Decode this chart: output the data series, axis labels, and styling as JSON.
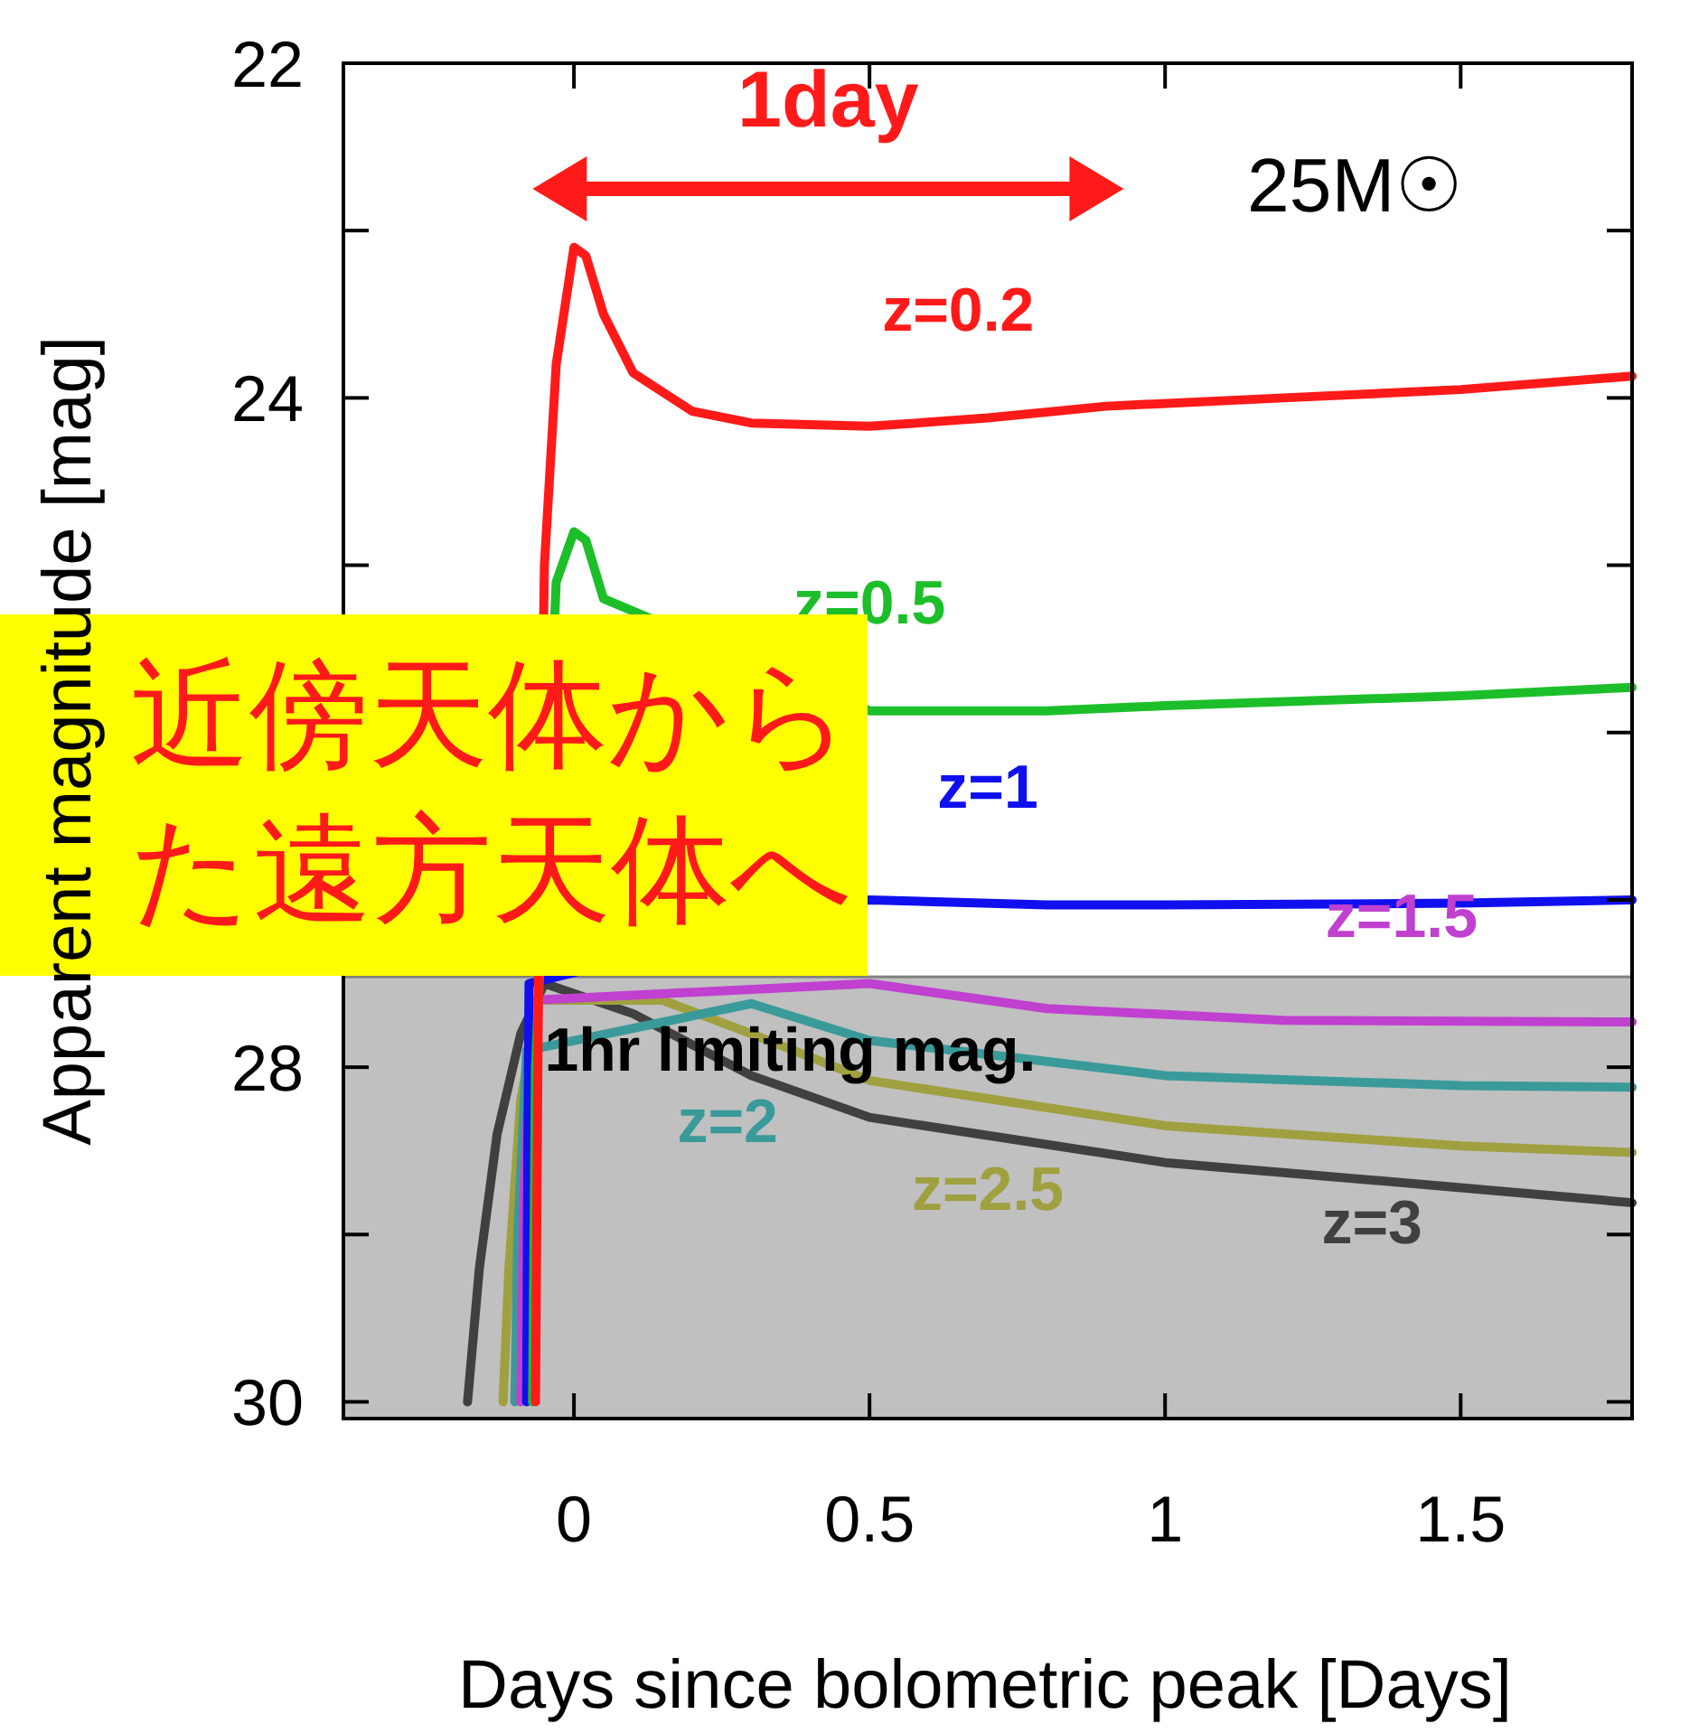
{
  "chart_data": {
    "type": "line",
    "xlabel": "Days since bolometric peak [Days]",
    "ylabel": "Apparent magnitude [mag]",
    "xlim": [
      -0.39,
      1.79
    ],
    "ylim": [
      30.1,
      22
    ],
    "xticks": [
      0,
      0.5,
      1,
      1.5
    ],
    "yticks": [
      22,
      {
        "value": 23,
        "label": null
      },
      24,
      {
        "value": 25,
        "label": null
      },
      {
        "value": 26,
        "label": null
      },
      {
        "value": 27,
        "label": null
      },
      28,
      {
        "value": 29,
        "label": null
      },
      30
    ],
    "grid": false,
    "marker": "none",
    "line_style": "solid",
    "bands": [
      {
        "axis": "y",
        "from": 27.46,
        "to": 30.1,
        "label": "1hr limiting mag.",
        "color": "#c0c0c0"
      }
    ],
    "annotations": [
      "1day",
      "25M☉",
      "近傍天体から",
      "た遠方天体へ"
    ],
    "series": [
      {
        "name": "z=0.2",
        "color": "#ff1a1a",
        "x": [
          -0.065,
          -0.06,
          -0.05,
          -0.03,
          0,
          0.02,
          0.05,
          0.1,
          0.2,
          0.3,
          0.5,
          0.7,
          0.9,
          1.2,
          1.5,
          1.79
        ],
        "values": [
          30,
          27.5,
          25,
          23.8,
          23.1,
          23.15,
          23.5,
          23.85,
          24.08,
          24.15,
          24.17,
          24.12,
          24.05,
          24.0,
          23.95,
          23.87
        ]
      },
      {
        "name": "z=0.5",
        "color": "#1cbf2a",
        "x": [
          -0.07,
          -0.065,
          -0.03,
          0,
          0.02,
          0.05,
          0.5,
          0.8,
          1.0,
          1.5,
          1.79
        ],
        "values": [
          30,
          28,
          25.1,
          24.8,
          24.85,
          25.2,
          25.87,
          25.87,
          25.84,
          25.78,
          25.73
        ]
      },
      {
        "name": "z=1",
        "color": "#1010ee",
        "x": [
          -0.08,
          -0.078,
          -0.076,
          0.5,
          0.8,
          1.0,
          1.5,
          1.79
        ],
        "values": [
          30,
          28.5,
          27.5,
          27.0,
          27.03,
          27.03,
          27.02,
          27.0
        ]
      },
      {
        "name": "z=1.5",
        "color": "#c040d0",
        "x": [
          -0.09,
          -0.085,
          -0.07,
          0.5,
          0.8,
          1.2,
          1.79
        ],
        "values": [
          30,
          28.8,
          27.6,
          27.5,
          27.65,
          27.72,
          27.73
        ]
      },
      {
        "name": "z=2",
        "color": "#3a9a9a",
        "x": [
          -0.1,
          -0.095,
          -0.08,
          0.3,
          0.5,
          1.0,
          1.5,
          1.79
        ],
        "values": [
          30,
          29,
          27.9,
          27.62,
          27.84,
          28.05,
          28.11,
          28.12
        ]
      },
      {
        "name": "z=2.5",
        "color": "#a0a040",
        "x": [
          -0.12,
          -0.11,
          -0.09,
          -0.06,
          0.15,
          0.3,
          0.5,
          1.0,
          1.5,
          1.79
        ],
        "values": [
          30,
          29.2,
          28.2,
          27.6,
          27.6,
          27.8,
          28.08,
          28.35,
          28.47,
          28.51
        ]
      },
      {
        "name": "z=3",
        "color": "#404040",
        "x": [
          -0.18,
          -0.16,
          -0.13,
          -0.09,
          -0.05,
          0.1,
          0.3,
          0.5,
          1.0,
          1.5,
          1.79
        ],
        "values": [
          30,
          29.2,
          28.4,
          27.8,
          27.5,
          27.68,
          28.05,
          28.3,
          28.57,
          28.72,
          28.81
        ]
      }
    ]
  }
}
